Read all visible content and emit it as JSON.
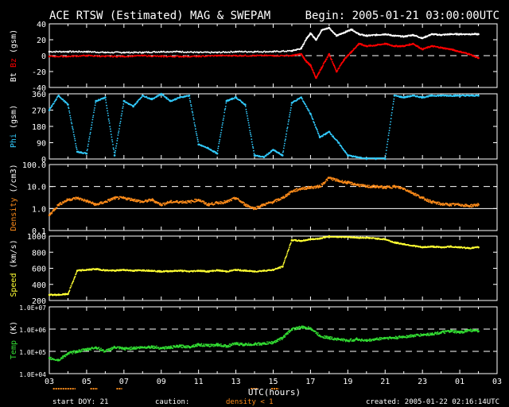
{
  "header": {
    "title": "ACE RTSW (Estimated) MAG & SWEPAM",
    "begin": "Begin: 2005-01-21 03:00:00UTC"
  },
  "footer": {
    "start_doy": "start DOY:  21",
    "caution": "caution:",
    "density_note": "density < 1",
    "created": "created: 2005-01-22 02:16:14UTC"
  },
  "colors": {
    "background": "#000000",
    "axis": "#ffffff",
    "bt": "#ffffff",
    "bz": "#ff0000",
    "phi": "#33ccff",
    "density": "#ff8c1a",
    "speed": "#ffff33",
    "temp": "#33dd33"
  },
  "chart_data": [
    {
      "type": "scatter",
      "panel": "mag",
      "ylabel_parts": [
        "Bt",
        "Bz",
        "(gsm)"
      ],
      "yticks": [
        "40",
        "20",
        "0",
        "-20",
        "-40"
      ],
      "ylim": [
        -40,
        40
      ],
      "dashed_lines": [
        0
      ],
      "xlim": [
        0,
        24
      ],
      "series": [
        {
          "name": "Bt",
          "color": "#ffffff",
          "x": [
            0,
            1,
            2,
            3,
            4,
            5,
            6,
            7,
            8,
            9,
            10,
            11,
            12,
            13,
            13.5,
            13.8,
            14,
            14.3,
            14.6,
            15,
            15.4,
            15.8,
            16.2,
            16.6,
            17,
            17.5,
            18,
            18.5,
            19,
            19.5,
            20,
            20.5,
            21,
            21.5,
            22,
            22.5,
            23
          ],
          "y": [
            5,
            5,
            5,
            4,
            4,
            4,
            5,
            5,
            4,
            4,
            5,
            5,
            5,
            6,
            9,
            22,
            28,
            20,
            32,
            35,
            25,
            29,
            33,
            27,
            25,
            26,
            27,
            25,
            24,
            26,
            22,
            27,
            26,
            27,
            27,
            27,
            27
          ]
        },
        {
          "name": "Bz",
          "color": "#ff0000",
          "x": [
            0,
            1,
            2,
            3,
            4,
            5,
            6,
            7,
            8,
            9,
            10,
            11,
            12,
            13,
            13.5,
            13.8,
            14,
            14.3,
            14.6,
            15,
            15.4,
            15.8,
            16.2,
            16.6,
            17,
            17.5,
            18,
            18.5,
            19,
            19.5,
            20,
            20.5,
            21,
            21.5,
            22,
            22.5,
            23
          ],
          "y": [
            -1,
            -1,
            0,
            -1,
            -1,
            0,
            -1,
            -1,
            -1,
            0,
            0,
            0,
            0,
            0,
            2,
            -8,
            -12,
            -28,
            -15,
            2,
            -20,
            -5,
            5,
            15,
            12,
            13,
            15,
            12,
            12,
            15,
            8,
            12,
            10,
            8,
            5,
            2,
            -3
          ]
        }
      ]
    },
    {
      "type": "scatter",
      "panel": "phi",
      "ylabel_parts": [
        "Phi",
        "(gsm)"
      ],
      "yticks": [
        "360",
        "270",
        "180",
        "90",
        "0"
      ],
      "ylim": [
        0,
        360
      ],
      "xlim": [
        0,
        24
      ],
      "series": [
        {
          "name": "Phi",
          "color": "#33ccff",
          "x": [
            0,
            0.5,
            1,
            1.5,
            2,
            2.5,
            3,
            3.5,
            4,
            4.5,
            5,
            5.5,
            6,
            6.5,
            7,
            7.5,
            8,
            8.5,
            9,
            9.5,
            10,
            10.5,
            11,
            11.5,
            12,
            12.5,
            13,
            13.5,
            14,
            14.5,
            15,
            15.5,
            16,
            16.5,
            17,
            17.5,
            18,
            18.5,
            19,
            19.5,
            20,
            20.5,
            21,
            21.5,
            22,
            22.5,
            23
          ],
          "y": [
            270,
            350,
            300,
            40,
            30,
            320,
            340,
            20,
            320,
            290,
            350,
            330,
            360,
            320,
            340,
            350,
            80,
            60,
            30,
            320,
            340,
            300,
            20,
            10,
            50,
            20,
            310,
            340,
            250,
            120,
            150,
            90,
            20,
            10,
            0,
            0,
            0,
            350,
            340,
            350,
            340,
            350,
            350,
            350,
            350,
            350,
            350
          ]
        }
      ]
    },
    {
      "type": "scatter",
      "panel": "density",
      "ylabel_parts": [
        "Density",
        "(/cm3)"
      ],
      "yticks": [
        "100.0",
        "10.0",
        "1.0",
        "0.1"
      ],
      "ylim": [
        0.1,
        100
      ],
      "log": true,
      "dashed_lines": [
        10
      ],
      "solid_lines": [
        1
      ],
      "xlim": [
        0,
        24
      ],
      "series": [
        {
          "name": "Density",
          "color": "#ff8c1a",
          "x": [
            0,
            0.5,
            1,
            1.5,
            2,
            2.5,
            3,
            3.5,
            4,
            4.5,
            5,
            5.5,
            6,
            6.5,
            7,
            7.5,
            8,
            8.5,
            9,
            9.5,
            10,
            10.5,
            11,
            11.5,
            12,
            12.5,
            13,
            13.5,
            14,
            14.5,
            15,
            15.5,
            16,
            16.5,
            17,
            17.5,
            18,
            18.5,
            19,
            19.5,
            20,
            20.5,
            21,
            21.5,
            22,
            22.5,
            23
          ],
          "y": [
            0.5,
            1.5,
            2.5,
            3,
            2.2,
            1.5,
            2,
            3,
            3,
            2.5,
            2,
            2.5,
            1.5,
            2,
            2,
            2,
            2.5,
            1.5,
            1.8,
            2,
            3,
            1.5,
            1,
            1.5,
            2,
            3,
            6,
            8,
            9,
            10,
            25,
            18,
            15,
            12,
            10,
            10,
            9,
            10,
            8,
            5,
            3,
            2,
            1.6,
            1.5,
            1.5,
            1.3,
            1.5
          ]
        }
      ]
    },
    {
      "type": "scatter",
      "panel": "speed",
      "ylabel_parts": [
        "Speed",
        "(km/s)"
      ],
      "yticks": [
        "1000",
        "800",
        "600",
        "400",
        "200"
      ],
      "ylim": [
        200,
        1000
      ],
      "xlim": [
        0,
        24
      ],
      "series": [
        {
          "name": "Speed",
          "color": "#ffff33",
          "x": [
            0,
            0.5,
            1,
            1.5,
            2,
            2.5,
            3,
            3.5,
            4,
            4.5,
            5,
            5.5,
            6,
            6.5,
            7,
            7.5,
            8,
            8.5,
            9,
            9.5,
            10,
            10.5,
            11,
            11.5,
            12,
            12.5,
            13,
            13.5,
            14,
            14.5,
            15,
            15.5,
            16,
            16.5,
            17,
            17.5,
            18,
            18.5,
            19,
            19.5,
            20,
            20.5,
            21,
            21.5,
            22,
            22.5,
            23
          ],
          "y": [
            270,
            270,
            280,
            570,
            580,
            590,
            575,
            570,
            580,
            570,
            575,
            570,
            560,
            565,
            570,
            560,
            570,
            560,
            575,
            560,
            580,
            570,
            560,
            570,
            580,
            620,
            950,
            940,
            960,
            970,
            1000,
            990,
            990,
            980,
            980,
            970,
            960,
            920,
            900,
            880,
            860,
            870,
            860,
            870,
            860,
            850,
            860
          ]
        }
      ]
    },
    {
      "type": "scatter",
      "panel": "temp",
      "ylabel_parts": [
        "Temp",
        "(K)"
      ],
      "yticks": [
        "1.0E+07",
        "1.0E+06",
        "1.0E+05",
        "1.0E+04"
      ],
      "ylim": [
        10000,
        10000000
      ],
      "log": true,
      "dashed_lines": [
        1000000,
        100000
      ],
      "xlim": [
        0,
        24
      ],
      "xticks": [
        "03",
        "05",
        "07",
        "09",
        "11",
        "13",
        "15",
        "17",
        "19",
        "21",
        "23",
        "01",
        "03"
      ],
      "xlabel": "UTC(hours)",
      "series": [
        {
          "name": "Temp",
          "color": "#33dd33",
          "x": [
            0,
            0.5,
            1,
            1.5,
            2,
            2.5,
            3,
            3.5,
            4,
            4.5,
            5,
            5.5,
            6,
            6.5,
            7,
            7.5,
            8,
            8.5,
            9,
            9.5,
            10,
            10.5,
            11,
            11.5,
            12,
            12.5,
            13,
            13.5,
            14,
            14.5,
            15,
            15.5,
            16,
            16.5,
            17,
            17.5,
            18,
            18.5,
            19,
            19.5,
            20,
            20.5,
            21,
            21.5,
            22,
            22.5,
            23
          ],
          "y": [
            50000,
            40000,
            80000,
            100000,
            120000,
            150000,
            100000,
            150000,
            130000,
            140000,
            150000,
            160000,
            140000,
            150000,
            170000,
            160000,
            200000,
            180000,
            200000,
            170000,
            220000,
            200000,
            210000,
            220000,
            250000,
            400000,
            1000000,
            1200000,
            1100000,
            500000,
            400000,
            350000,
            300000,
            350000,
            300000,
            350000,
            400000,
            400000,
            450000,
            500000,
            550000,
            600000,
            700000,
            800000,
            700000,
            900000,
            800000
          ]
        }
      ]
    }
  ]
}
